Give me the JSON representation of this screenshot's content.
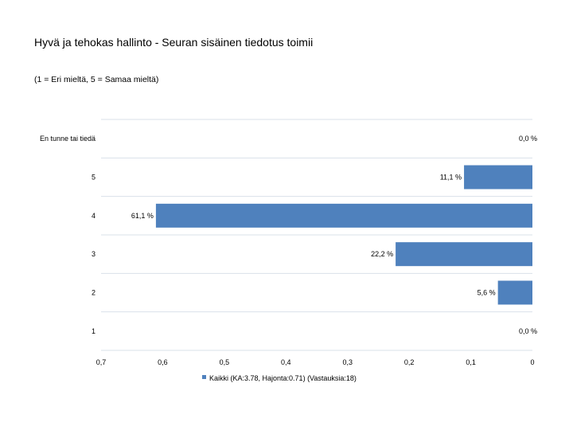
{
  "header": {
    "title": "Hyvä ja tehokas hallinto - Seuran sisäinen tiedotus toimii",
    "subtitle": "(1 = Eri mieltä, 5 = Samaa mieltä)"
  },
  "chart_data": {
    "type": "bar",
    "orientation": "horizontal",
    "x_reversed": true,
    "categories": [
      "En tunne tai tiedä",
      "5",
      "4",
      "3",
      "2",
      "1"
    ],
    "series": [
      {
        "name": "Kaikki (KA:3.78, Hajonta:0.71) (Vastauksia:18)",
        "values": [
          0.0,
          0.111,
          0.611,
          0.222,
          0.056,
          0.0
        ],
        "labels": [
          "0,0 %",
          "11,1 %",
          "61,1 %",
          "22,2 %",
          "5,6 %",
          "0,0 %"
        ],
        "color": "#4f81bd"
      }
    ],
    "xlim": [
      0,
      0.7
    ],
    "x_ticks": [
      0.7,
      0.6,
      0.5,
      0.4,
      0.3,
      0.2,
      0.1,
      0
    ],
    "x_tick_labels": [
      "0,7",
      "0,6",
      "0,5",
      "0,4",
      "0,3",
      "0,2",
      "0,1",
      "0"
    ],
    "grid": true,
    "legend_position": "bottom"
  },
  "colors": {
    "bar": "#4f81bd",
    "grid": "#d9e1ea"
  }
}
